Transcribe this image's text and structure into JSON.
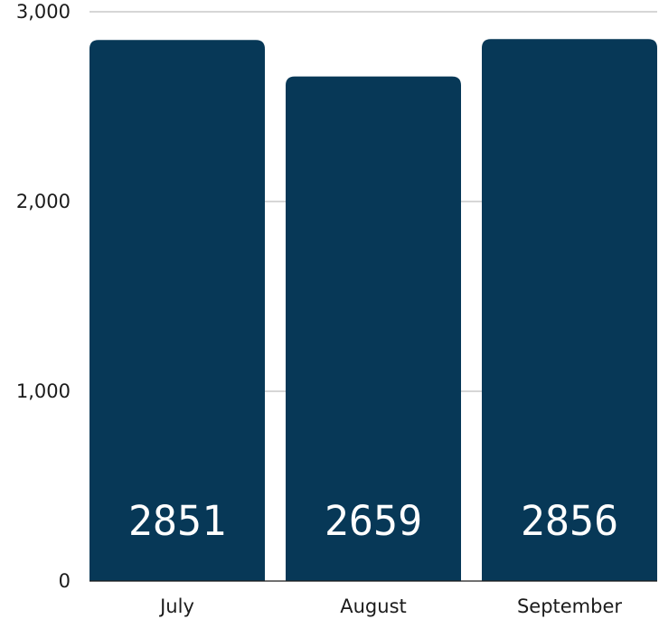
{
  "chart_data": {
    "type": "bar",
    "title": "",
    "xlabel": "",
    "ylabel": "",
    "categories": [
      "July",
      "August",
      "September"
    ],
    "values": [
      2851,
      2659,
      2856
    ],
    "data_labels": [
      "2851",
      "2659",
      "2856"
    ],
    "ylim": [
      0,
      3000
    ],
    "y_ticks": [
      0,
      1000,
      2000,
      3000
    ],
    "y_tick_labels": [
      "0",
      "1,000",
      "2,000",
      "3,000"
    ],
    "grid": true,
    "legend": "none",
    "bar_color": "#073857",
    "label_color": "#ffffff",
    "grid_color": "#bdbdbd"
  }
}
